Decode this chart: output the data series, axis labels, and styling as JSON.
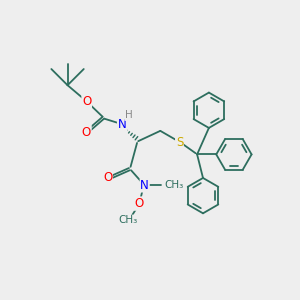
{
  "bg_color": "#eeeeee",
  "bond_color": "#2d6e5e",
  "atom_colors": {
    "O": "#ff0000",
    "N": "#0000ff",
    "S": "#ccaa00",
    "H": "#888888",
    "C": "#2d6e5e"
  },
  "figsize": [
    3.0,
    3.0
  ],
  "dpi": 100
}
